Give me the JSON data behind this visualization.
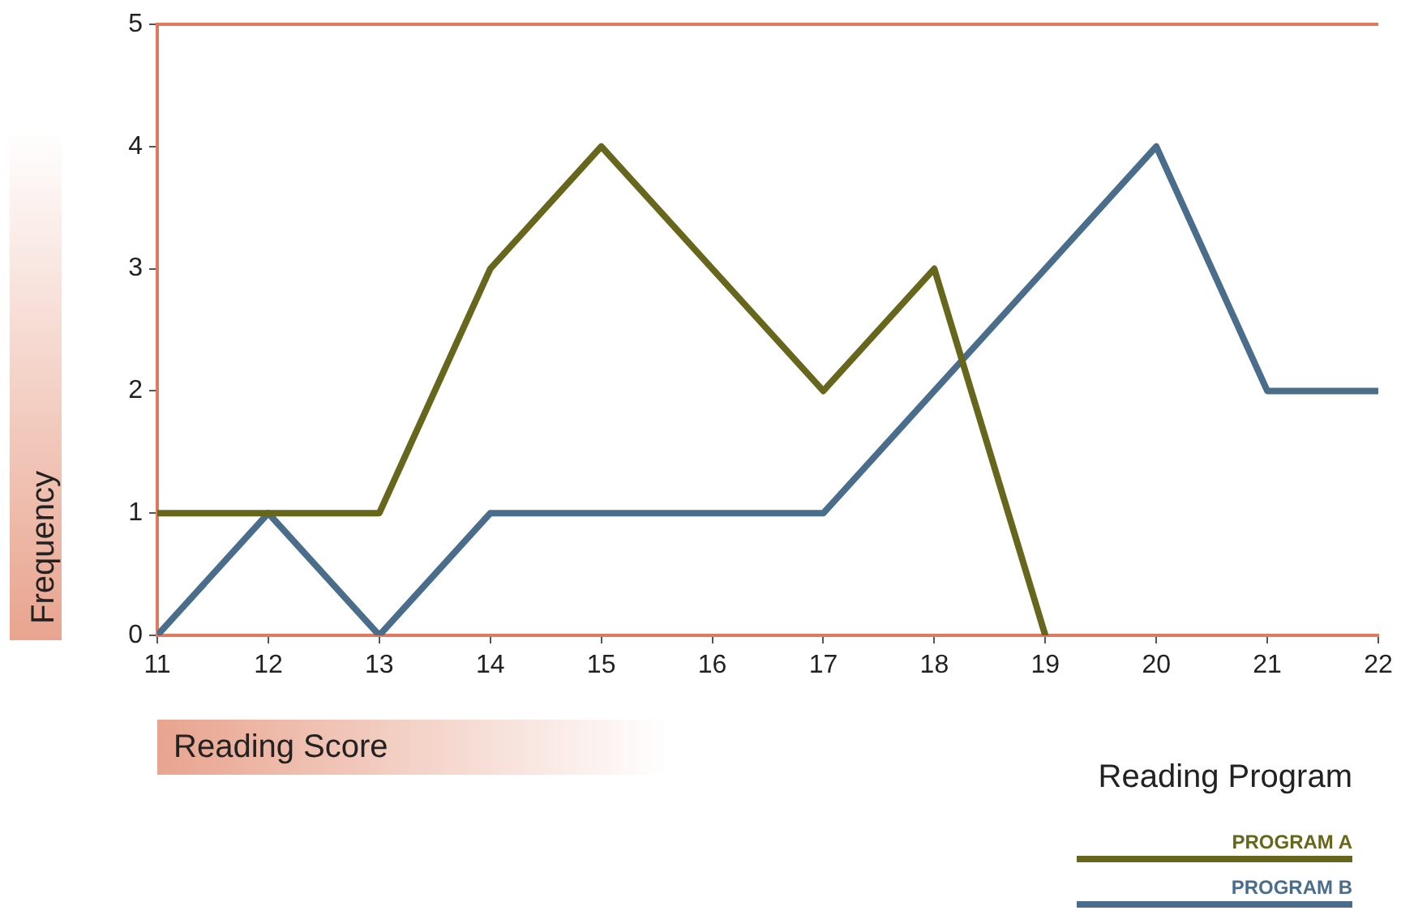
{
  "chart_data": {
    "type": "line",
    "xlabel": "Reading Score",
    "ylabel": "Frequency",
    "legend_title": "Reading Program",
    "x": [
      11,
      12,
      13,
      14,
      15,
      16,
      17,
      18,
      19,
      20,
      21,
      22
    ],
    "series": [
      {
        "name": "PROGRAM A",
        "color": "#66661c",
        "values": [
          1,
          1,
          1,
          3,
          4,
          3,
          2,
          3,
          0,
          null,
          null,
          null
        ]
      },
      {
        "name": "PROGRAM B",
        "color": "#4b6d8c",
        "values": [
          0,
          1,
          0,
          1,
          1,
          1,
          1,
          2,
          3,
          4,
          2,
          2
        ]
      }
    ],
    "xlim": [
      11,
      22
    ],
    "xticks": [
      11,
      12,
      13,
      14,
      15,
      16,
      17,
      18,
      19,
      20,
      21,
      22
    ],
    "ylim": [
      0,
      5
    ],
    "yticks": [
      0,
      1,
      2,
      3,
      4,
      5
    ],
    "grid": false,
    "legend": "bottom right",
    "marker": "none",
    "line_style": "solid"
  }
}
